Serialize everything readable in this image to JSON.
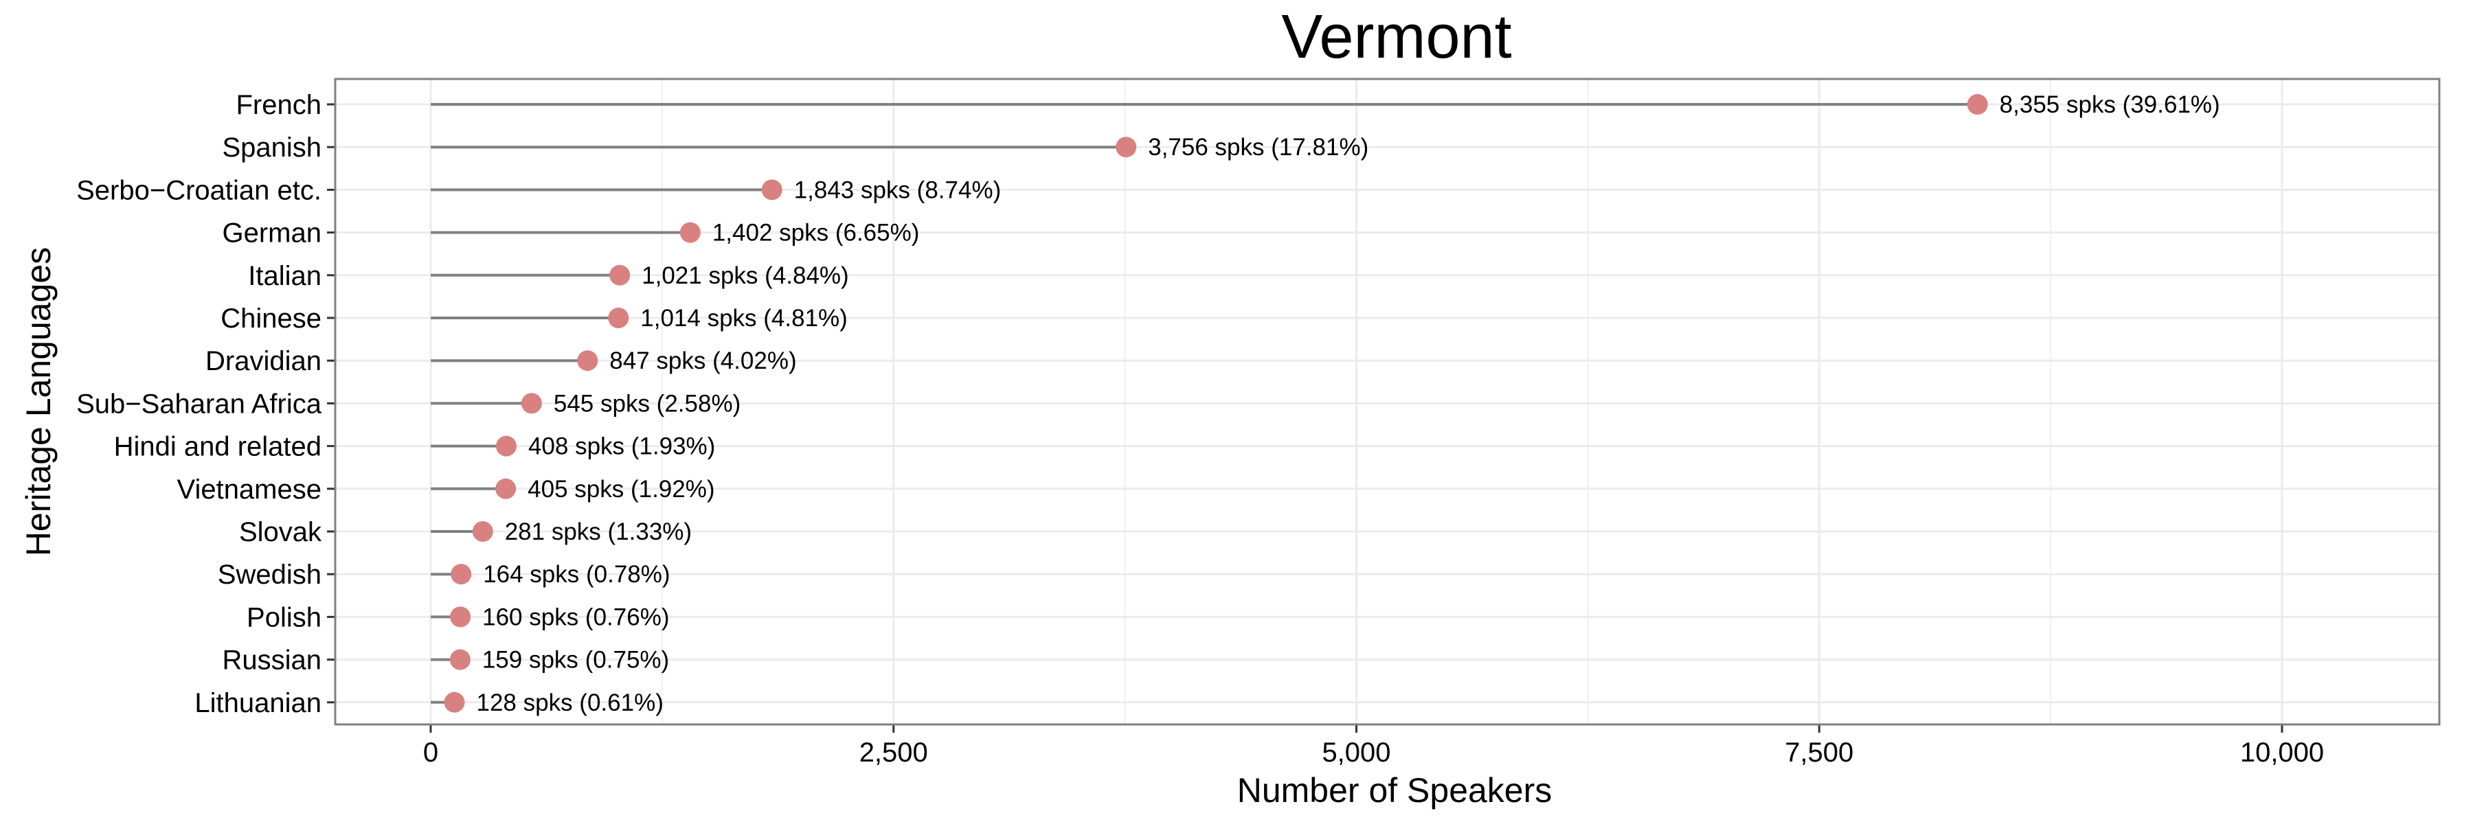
{
  "chart_data": {
    "type": "lollipop",
    "title": "Vermont",
    "xlabel": "Number of Speakers",
    "ylabel": "Heritage Languages",
    "xlim": [
      0,
      11000
    ],
    "x_ticks": [
      0,
      2500,
      5000,
      7500,
      10000
    ],
    "x_tick_labels": [
      "0",
      "2,500",
      "5,000",
      "7,500",
      "10,000"
    ],
    "grid": true,
    "colors": {
      "point": "#d98080",
      "stem": "#808080",
      "grid": "#ebebeb",
      "panel_border": "#808080"
    },
    "categories": [
      "French",
      "Spanish",
      "Serbo−Croatian etc.",
      "German",
      "Italian",
      "Chinese",
      "Dravidian",
      "Sub−Saharan Africa",
      "Hindi and related",
      "Vietnamese",
      "Slovak",
      "Swedish",
      "Polish",
      "Russian",
      "Lithuanian"
    ],
    "values": [
      8355,
      3756,
      1843,
      1402,
      1021,
      1014,
      847,
      545,
      408,
      405,
      281,
      164,
      160,
      159,
      128
    ],
    "labels": [
      "8,355 spks (39.61%)",
      "3,756 spks (17.81%)",
      "1,843 spks (8.74%)",
      "1,402 spks (6.65%)",
      "1,021 spks (4.84%)",
      "1,014 spks (4.81%)",
      "847 spks (4.02%)",
      "545 spks (2.58%)",
      "408 spks (1.93%)",
      "405 spks (1.92%)",
      "281 spks (1.33%)",
      "164 spks (0.78%)",
      "160 spks (0.76%)",
      "159 spks (0.75%)",
      "128 spks (0.61%)"
    ]
  }
}
